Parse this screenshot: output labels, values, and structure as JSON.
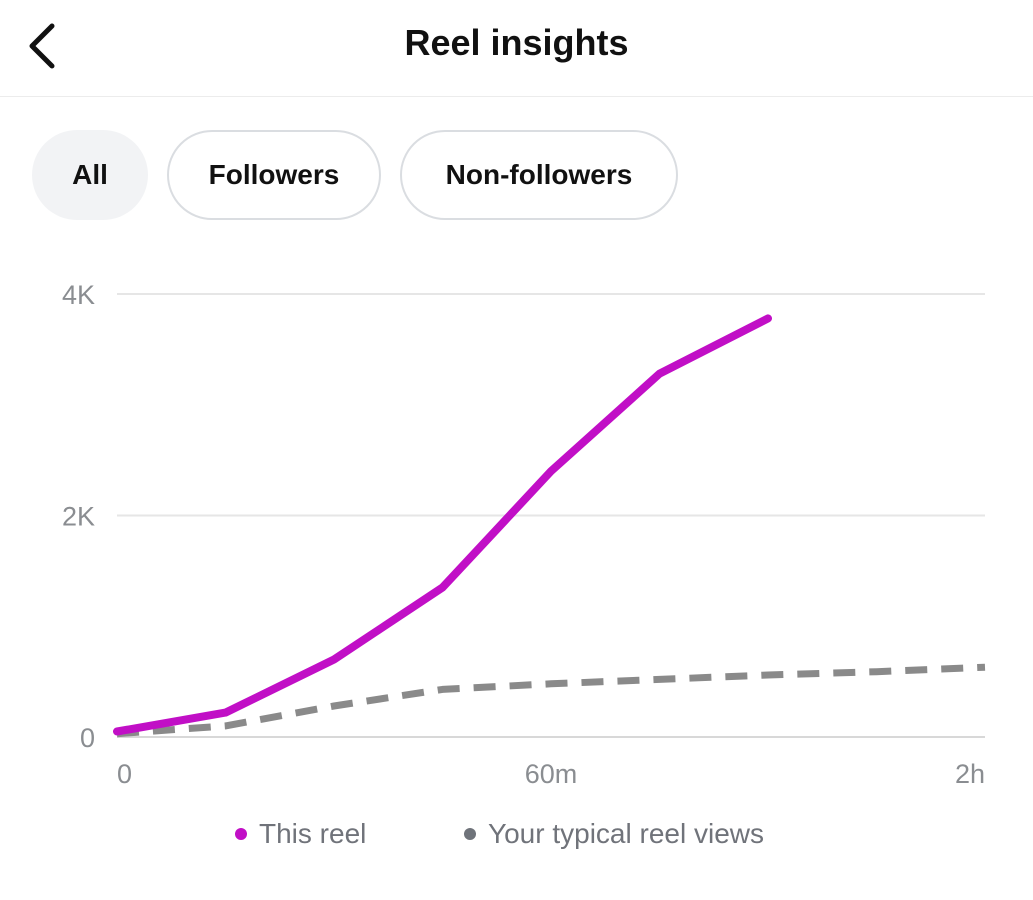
{
  "header": {
    "title": "Reel insights"
  },
  "tabs": [
    {
      "label": "All",
      "selected": true
    },
    {
      "label": "Followers",
      "selected": false
    },
    {
      "label": "Non-followers",
      "selected": false
    }
  ],
  "chart_data": {
    "type": "line",
    "x_ticks": [
      "0",
      "60m",
      "2h"
    ],
    "y_ticks": [
      "0",
      "2K",
      "4K"
    ],
    "xlim": [
      0,
      120
    ],
    "ylim": [
      0,
      4000
    ],
    "grid": true,
    "legend_placement": "bottom",
    "series": [
      {
        "name": "This reel",
        "color": "#c10fc6",
        "style": "solid",
        "x": [
          0,
          15,
          30,
          45,
          60,
          75,
          90
        ],
        "y": [
          50,
          220,
          700,
          1350,
          2400,
          3280,
          3780
        ]
      },
      {
        "name": "Your typical reel views",
        "color": "#8a8a8a",
        "style": "dashed",
        "x": [
          0,
          15,
          30,
          45,
          60,
          75,
          90,
          105,
          120
        ],
        "y": [
          30,
          100,
          280,
          430,
          480,
          520,
          560,
          590,
          630
        ]
      }
    ]
  }
}
